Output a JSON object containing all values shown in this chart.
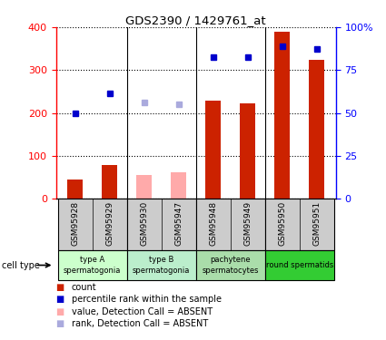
{
  "title": "GDS2390 / 1429761_at",
  "samples": [
    "GSM95928",
    "GSM95929",
    "GSM95930",
    "GSM95947",
    "GSM95948",
    "GSM95949",
    "GSM95950",
    "GSM95951"
  ],
  "bar_values": [
    45,
    80,
    55,
    62,
    228,
    222,
    390,
    325
  ],
  "bar_absent": [
    false,
    false,
    true,
    true,
    false,
    false,
    false,
    false
  ],
  "rank_values": [
    200,
    245,
    225,
    220,
    330,
    330,
    355,
    350
  ],
  "rank_absent": [
    false,
    false,
    true,
    true,
    false,
    false,
    false,
    false
  ],
  "ylim": [
    0,
    400
  ],
  "y2lim": [
    0,
    100
  ],
  "yticks": [
    0,
    100,
    200,
    300,
    400
  ],
  "y2ticks": [
    0,
    25,
    50,
    75,
    100
  ],
  "y2ticklabels": [
    "0",
    "25",
    "50",
    "75",
    "100%"
  ],
  "y_left_label_0": "0",
  "cell_groups": [
    {
      "label": "type A\nspermatogonia",
      "samples": [
        0,
        1
      ],
      "color": "#ccffcc"
    },
    {
      "label": "type B\nspermatogonia",
      "samples": [
        2,
        3
      ],
      "color": "#aaffaa"
    },
    {
      "label": "pachytene\nspermatocytes",
      "samples": [
        4,
        5
      ],
      "color": "#88ee88"
    },
    {
      "label": "round spermatids",
      "samples": [
        6,
        7
      ],
      "color": "#44dd44"
    }
  ],
  "group_colors": [
    "#ccffcc",
    "#bbeecc",
    "#aaddaa",
    "#33cc33"
  ],
  "bar_color_present": "#cc2200",
  "bar_color_absent": "#ffaaaa",
  "dot_color_present": "#0000cc",
  "dot_color_absent": "#aaaadd",
  "bar_width": 0.45,
  "legend_labels": [
    "count",
    "percentile rank within the sample",
    "value, Detection Call = ABSENT",
    "rank, Detection Call = ABSENT"
  ],
  "sample_area_bg": "#cccccc",
  "cell_type_label": "cell type",
  "group_boundaries": [
    1.5,
    3.5,
    5.5
  ]
}
